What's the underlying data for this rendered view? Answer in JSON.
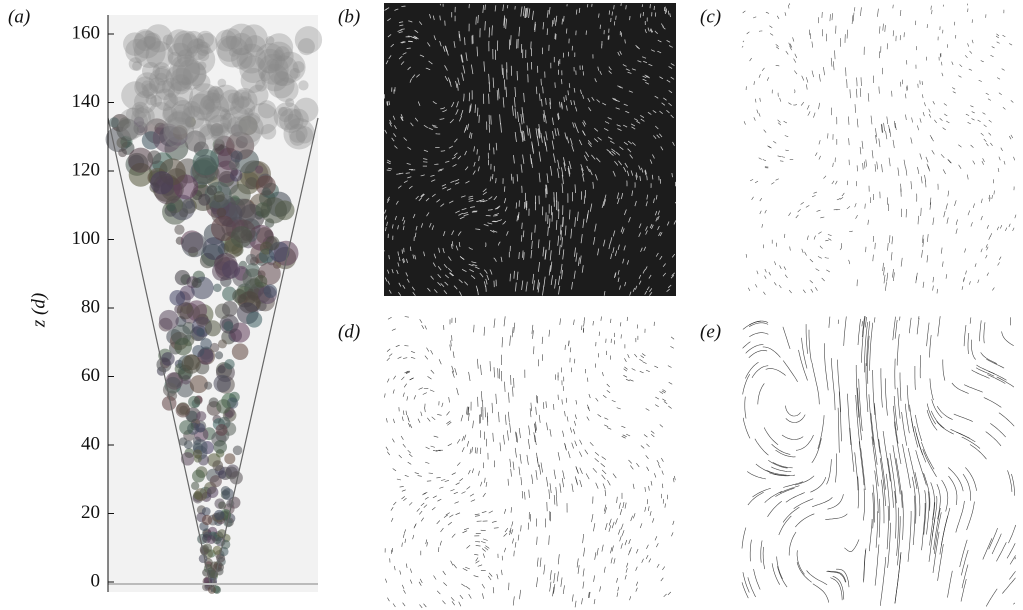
{
  "panels": [
    {
      "label": "(a)"
    },
    {
      "label": "(b)"
    },
    {
      "label": "(c)"
    },
    {
      "label": "(d)"
    },
    {
      "label": "(e)"
    }
  ],
  "axis": {
    "label": "z (d)",
    "yticks": [
      0,
      20,
      40,
      60,
      80,
      100,
      120,
      140,
      160
    ]
  }
}
